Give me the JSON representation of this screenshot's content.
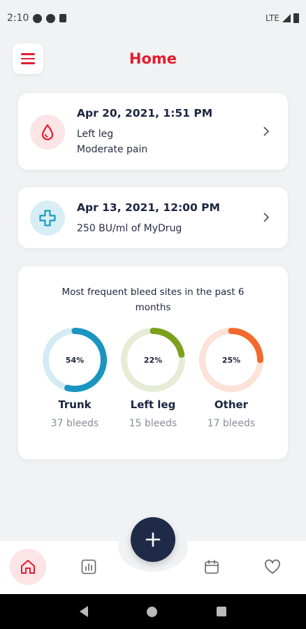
{
  "status": {
    "time": "2:10",
    "network": "LTE"
  },
  "header": {
    "title": "Home"
  },
  "events": [
    {
      "date": "Apr 20, 2021, 1:51 PM",
      "line1": "Left leg",
      "line2": "Moderate pain",
      "icon": "blood-drop-icon",
      "color": "#e11d2e"
    },
    {
      "date": "Apr 13, 2021, 12:00 PM",
      "line1": "250 BU/ml of MyDrug",
      "icon": "medical-cross-icon",
      "color": "#1a9bbf"
    }
  ],
  "sites": {
    "title": "Most frequent bleed sites in the past 6 months",
    "items": [
      {
        "label": "Trunk",
        "percent_label": "54%",
        "percent": 54,
        "count": "37 bleeds",
        "color": "#1a94c0",
        "track": "#d4ebf3"
      },
      {
        "label": "Left leg",
        "percent_label": "22%",
        "percent": 22,
        "count": "15 bleeds",
        "color": "#7ba01c",
        "track": "#e6edd6"
      },
      {
        "label": "Other",
        "percent_label": "25%",
        "percent": 25,
        "count": "17 bleeds",
        "color": "#f26a2f",
        "track": "#fde2d8"
      }
    ]
  },
  "nav": {
    "items": [
      {
        "icon": "home-icon",
        "active": true
      },
      {
        "icon": "bar-chart-icon",
        "active": false
      },
      {
        "icon": "calendar-icon",
        "active": false
      },
      {
        "icon": "heart-icon",
        "active": false
      }
    ],
    "fab_icon": "plus-icon"
  }
}
